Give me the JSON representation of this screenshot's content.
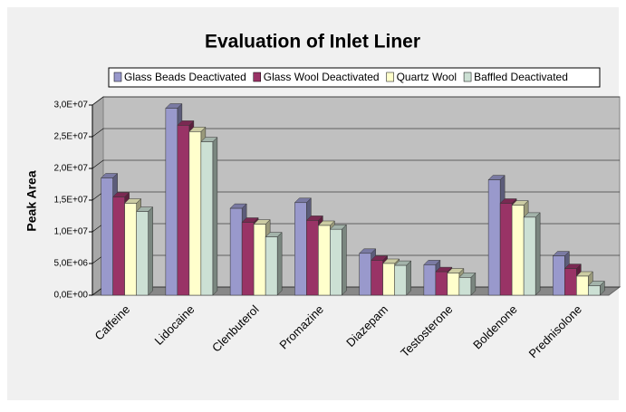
{
  "chart_data": {
    "type": "bar3d",
    "title": "Evaluation of Inlet Liner",
    "y_label": "Peak Area",
    "categories": [
      "Caffeine",
      "Lidocaine",
      "Clenbuterol",
      "Promazine",
      "Diazepam",
      "Testosterone",
      "Boldenone",
      "Prednisolone"
    ],
    "series": [
      {
        "name": "Glass Beads Deactivated",
        "color": "#9999cc",
        "values": [
          18500000,
          29500000,
          13700000,
          14600000,
          6600000,
          4800000,
          18200000,
          6200000
        ]
      },
      {
        "name": "Glass Wool Deactivated",
        "color": "#993366",
        "values": [
          15500000,
          26800000,
          11500000,
          11800000,
          5500000,
          3700000,
          14500000,
          4200000
        ]
      },
      {
        "name": "Quartz Wool",
        "color": "#ffffcc",
        "values": [
          14500000,
          25800000,
          11200000,
          11000000,
          5000000,
          3500000,
          14200000,
          3000000
        ]
      },
      {
        "name": "Baffled Deactivated",
        "color": "#cce0d4",
        "values": [
          13200000,
          24200000,
          9200000,
          10400000,
          4700000,
          2800000,
          12300000,
          1500000
        ]
      }
    ],
    "ylim": [
      0,
      30000000
    ],
    "yticks": [
      {
        "value": 0,
        "label": "0,0E+00"
      },
      {
        "value": 5000000,
        "label": "5,0E+06"
      },
      {
        "value": 10000000,
        "label": "1,0E+07"
      },
      {
        "value": 15000000,
        "label": "1,5E+07"
      },
      {
        "value": 20000000,
        "label": "2,0E+07"
      },
      {
        "value": 25000000,
        "label": "2,5E+07"
      },
      {
        "value": 30000000,
        "label": "3,0E+07"
      }
    ],
    "grid": true
  }
}
